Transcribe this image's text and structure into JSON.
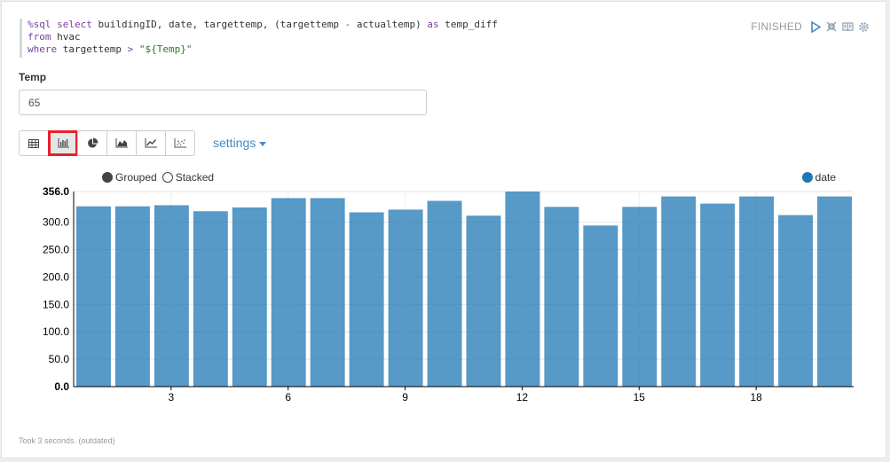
{
  "code": {
    "line1": {
      "kw": "%sql select",
      "rest": " buildingID, date, targettemp, (targettemp ",
      "op": "-",
      "rest2": " actualtemp) ",
      "kw2": "as",
      "rest3": " temp_diff"
    },
    "line2": {
      "kw": "from",
      "rest": " hvac"
    },
    "line3": {
      "kw": "where",
      "rest": " targettemp ",
      "op": ">",
      "str": " \"${Temp}\""
    }
  },
  "header": {
    "status": "FINISHED",
    "icons": [
      "run-icon",
      "collapse-icon",
      "book-icon",
      "gear-icon"
    ]
  },
  "form": {
    "label": "Temp",
    "value": "65"
  },
  "visualization": {
    "buttons": [
      "table-icon",
      "bar-chart-icon",
      "pie-chart-icon",
      "area-chart-icon",
      "line-chart-icon",
      "scatter-chart-icon"
    ],
    "active": "bar-chart-icon",
    "settings_label": "settings"
  },
  "chart_options": {
    "grouped_label": "Grouped",
    "stacked_label": "Stacked",
    "selected": "Grouped"
  },
  "legend": {
    "label": "date",
    "color": "#1f77b4"
  },
  "chart_data": {
    "type": "bar",
    "categories": [
      1,
      2,
      3,
      4,
      5,
      6,
      7,
      8,
      9,
      10,
      11,
      12,
      13,
      14,
      15,
      16,
      17,
      18,
      19,
      20
    ],
    "series": [
      {
        "name": "date",
        "values": [
          329,
          329,
          331,
          320,
          327,
          344,
          344,
          318,
          323,
          339,
          312,
          356,
          328,
          294,
          328,
          347,
          334,
          347,
          313,
          347
        ]
      }
    ],
    "yticks": [
      "0.0",
      "50.0",
      "100.0",
      "150.0",
      "200.0",
      "250.0",
      "300.0",
      "356.0"
    ],
    "xticks": [
      "3",
      "6",
      "9",
      "12",
      "15",
      "18"
    ],
    "ylim": [
      0,
      356
    ],
    "color": "#1f77b4"
  },
  "footer": {
    "text": "Took 3 seconds. (outdated)"
  }
}
